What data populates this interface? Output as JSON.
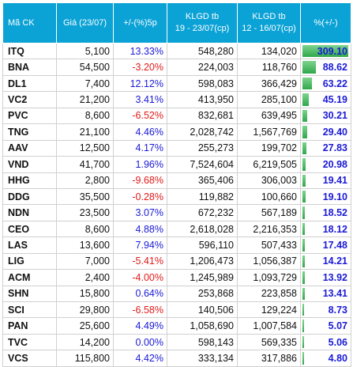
{
  "header": {
    "code": "Mã CK",
    "price": "Giá (23/07)",
    "change": "+/-(%)5p",
    "klgd_recent_line1": "KLGD tb",
    "klgd_recent_line2": "19 - 23/07(cp)",
    "klgd_prev_line1": "KLGD tb",
    "klgd_prev_line2": "12 - 16/07(cp)",
    "pct": "%(+/-)"
  },
  "colors": {
    "header_bg": "#0ba2d6",
    "positive": "#1a1ad6",
    "negative": "#e01b1b",
    "bar": "#2fa84a"
  },
  "rows": [
    {
      "code": "ITQ",
      "price": "5,100",
      "change": "13.33%",
      "change_sign": "pos",
      "klgd_recent": "548,280",
      "klgd_prev": "134,020",
      "pct": "309.10",
      "pct_value": 309.1
    },
    {
      "code": "BNA",
      "price": "54,500",
      "change": "-3.20%",
      "change_sign": "neg",
      "klgd_recent": "224,003",
      "klgd_prev": "118,760",
      "pct": "88.62",
      "pct_value": 88.62
    },
    {
      "code": "DL1",
      "price": "7,400",
      "change": "12.12%",
      "change_sign": "pos",
      "klgd_recent": "598,083",
      "klgd_prev": "366,429",
      "pct": "63.22",
      "pct_value": 63.22
    },
    {
      "code": "VC2",
      "price": "21,200",
      "change": "3.41%",
      "change_sign": "pos",
      "klgd_recent": "413,950",
      "klgd_prev": "285,100",
      "pct": "45.19",
      "pct_value": 45.19
    },
    {
      "code": "PVC",
      "price": "8,600",
      "change": "-6.52%",
      "change_sign": "neg",
      "klgd_recent": "832,681",
      "klgd_prev": "639,495",
      "pct": "30.21",
      "pct_value": 30.21
    },
    {
      "code": "TNG",
      "price": "21,100",
      "change": "4.46%",
      "change_sign": "pos",
      "klgd_recent": "2,028,742",
      "klgd_prev": "1,567,769",
      "pct": "29.40",
      "pct_value": 29.4
    },
    {
      "code": "AAV",
      "price": "12,500",
      "change": "4.17%",
      "change_sign": "pos",
      "klgd_recent": "255,273",
      "klgd_prev": "199,702",
      "pct": "27.83",
      "pct_value": 27.83
    },
    {
      "code": "VND",
      "price": "41,700",
      "change": "1.96%",
      "change_sign": "pos",
      "klgd_recent": "7,524,604",
      "klgd_prev": "6,219,505",
      "pct": "20.98",
      "pct_value": 20.98
    },
    {
      "code": "HHG",
      "price": "2,800",
      "change": "-9.68%",
      "change_sign": "neg",
      "klgd_recent": "365,406",
      "klgd_prev": "306,003",
      "pct": "19.41",
      "pct_value": 19.41
    },
    {
      "code": "DDG",
      "price": "35,500",
      "change": "-0.28%",
      "change_sign": "neg",
      "klgd_recent": "119,882",
      "klgd_prev": "100,660",
      "pct": "19.10",
      "pct_value": 19.1
    },
    {
      "code": "NDN",
      "price": "23,500",
      "change": "3.07%",
      "change_sign": "pos",
      "klgd_recent": "672,232",
      "klgd_prev": "567,189",
      "pct": "18.52",
      "pct_value": 18.52
    },
    {
      "code": "CEO",
      "price": "8,600",
      "change": "4.88%",
      "change_sign": "pos",
      "klgd_recent": "2,618,028",
      "klgd_prev": "2,216,353",
      "pct": "18.12",
      "pct_value": 18.12
    },
    {
      "code": "LAS",
      "price": "13,600",
      "change": "7.94%",
      "change_sign": "pos",
      "klgd_recent": "596,110",
      "klgd_prev": "507,433",
      "pct": "17.48",
      "pct_value": 17.48
    },
    {
      "code": "LIG",
      "price": "7,000",
      "change": "-5.41%",
      "change_sign": "neg",
      "klgd_recent": "1,206,473",
      "klgd_prev": "1,056,387",
      "pct": "14.21",
      "pct_value": 14.21
    },
    {
      "code": "ACM",
      "price": "2,400",
      "change": "-4.00%",
      "change_sign": "neg",
      "klgd_recent": "1,245,989",
      "klgd_prev": "1,093,729",
      "pct": "13.92",
      "pct_value": 13.92
    },
    {
      "code": "SHN",
      "price": "15,800",
      "change": "0.64%",
      "change_sign": "pos",
      "klgd_recent": "253,868",
      "klgd_prev": "223,858",
      "pct": "13.41",
      "pct_value": 13.41
    },
    {
      "code": "SCI",
      "price": "29,800",
      "change": "-6.58%",
      "change_sign": "neg",
      "klgd_recent": "140,506",
      "klgd_prev": "129,224",
      "pct": "8.73",
      "pct_value": 8.73
    },
    {
      "code": "PAN",
      "price": "25,600",
      "change": "4.49%",
      "change_sign": "pos",
      "klgd_recent": "1,058,690",
      "klgd_prev": "1,007,584",
      "pct": "5.07",
      "pct_value": 5.07
    },
    {
      "code": "TVC",
      "price": "14,200",
      "change": "0.00%",
      "change_sign": "zero",
      "klgd_recent": "598,143",
      "klgd_prev": "569,335",
      "pct": "5.06",
      "pct_value": 5.06
    },
    {
      "code": "VCS",
      "price": "115,800",
      "change": "4.42%",
      "change_sign": "pos",
      "klgd_recent": "333,134",
      "klgd_prev": "317,886",
      "pct": "4.80",
      "pct_value": 4.8
    }
  ]
}
